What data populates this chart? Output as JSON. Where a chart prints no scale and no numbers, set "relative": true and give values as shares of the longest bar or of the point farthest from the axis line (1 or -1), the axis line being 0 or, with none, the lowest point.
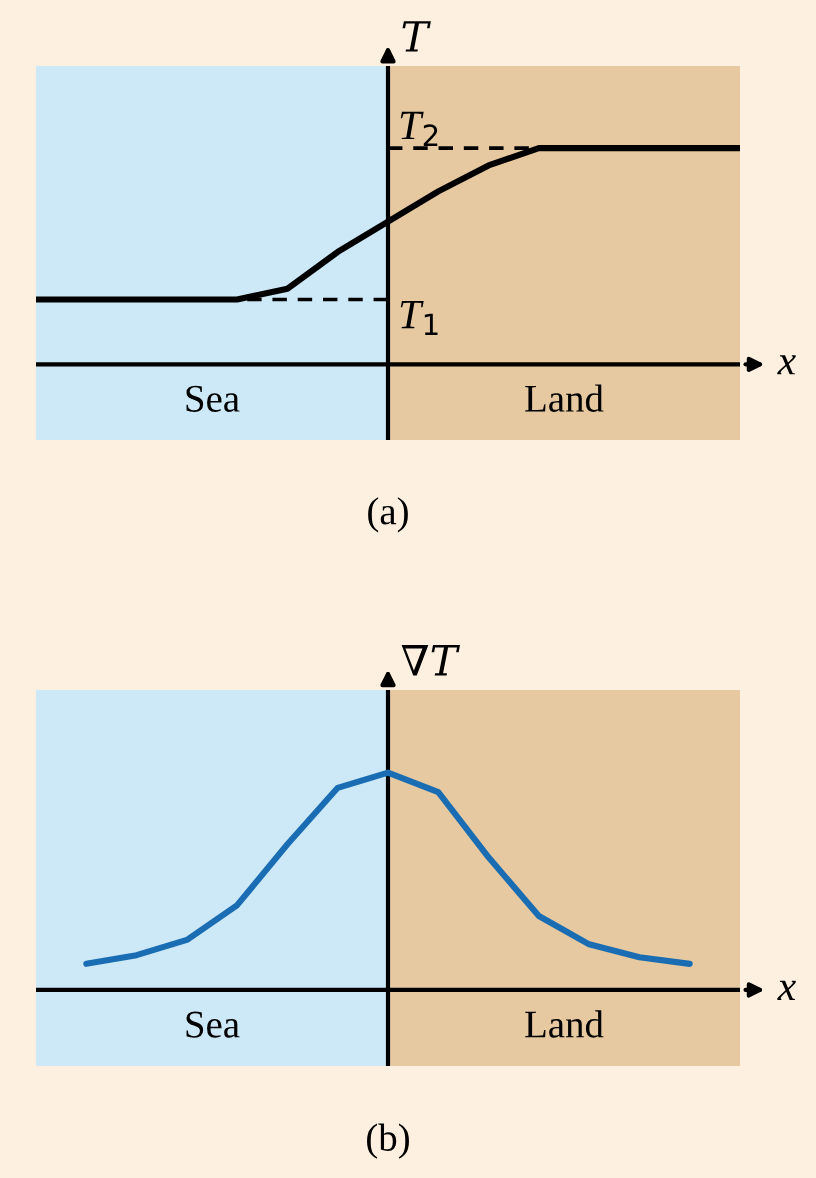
{
  "chart_data": [
    {
      "type": "line",
      "title": "(a)",
      "xlabel": "x",
      "ylabel": "T",
      "relative": true,
      "legend": false,
      "categories": [
        null,
        null,
        null,
        null,
        null,
        null,
        null,
        null,
        null,
        null,
        null,
        null,
        null,
        null,
        null
      ],
      "series": [
        {
          "color": "#000000",
          "values": [
            0.3,
            0.3,
            0.3,
            0.3,
            0.3,
            0.35,
            0.52,
            0.66,
            0.8,
            0.92,
            1.0,
            1.0,
            1.0,
            1.0,
            1.0
          ]
        }
      ],
      "ref_lines": [
        {
          "axis": "y",
          "value": 0.3,
          "label": "T$_{1}$",
          "line_style": "dashed",
          "color": "#000000"
        },
        {
          "axis": "y",
          "value": 1.0,
          "label": "T$_{2}$",
          "line_style": "dashed",
          "color": "#000000"
        }
      ],
      "annotations": [
        "Sea",
        "Land"
      ]
    },
    {
      "type": "line",
      "title": "(b)",
      "xlabel": "x",
      "ylabel": "∇T",
      "relative": true,
      "legend": false,
      "categories": [
        null,
        null,
        null,
        null,
        null,
        null,
        null,
        null,
        null,
        null,
        null,
        null,
        null,
        null,
        null
      ],
      "series": [
        {
          "color": "#1a6db3",
          "values": [
            null,
            0.12,
            0.16,
            0.23,
            0.39,
            0.67,
            0.93,
            1.0,
            0.91,
            0.61,
            0.34,
            0.21,
            0.15,
            0.12,
            null
          ]
        }
      ],
      "annotations": [
        "Sea",
        "Land"
      ]
    }
  ]
}
